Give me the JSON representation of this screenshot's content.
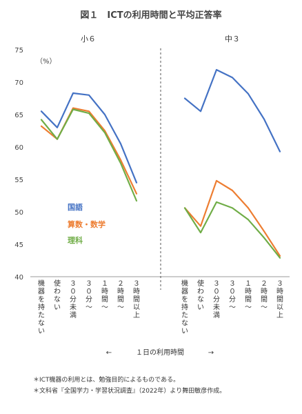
{
  "chart_data": {
    "type": "line",
    "title": "図１　ICTの利用時間と平均正答率",
    "unit_label": "（%）",
    "ylim": [
      40,
      75
    ],
    "yticks": [
      40,
      45,
      50,
      55,
      60,
      65,
      70,
      75
    ],
    "categories": [
      "機器を持たない",
      "使わない",
      "３０分未満",
      "３０分～",
      "１時間～",
      "２時間～",
      "３時間以上"
    ],
    "xlabel": "１日の利用時間",
    "xlabel_left_arrow": "←",
    "xlabel_right_arrow": "→",
    "legend_placement": "left-center",
    "grid": false,
    "panels": [
      {
        "name": "小６",
        "series": [
          {
            "name": "国語",
            "color": "#4472C4",
            "values": [
              65.5,
              63.0,
              68.3,
              68.0,
              65.0,
              60.5,
              54.5
            ]
          },
          {
            "name": "算数・数学",
            "color": "#ED7D31",
            "values": [
              63.2,
              61.2,
              66.0,
              65.5,
              62.5,
              58.0,
              52.8
            ]
          },
          {
            "name": "理科",
            "color": "#70AD47",
            "values": [
              64.2,
              61.2,
              65.8,
              65.2,
              62.2,
              57.5,
              51.7
            ]
          }
        ]
      },
      {
        "name": "中３",
        "series": [
          {
            "name": "国語",
            "color": "#4472C4",
            "values": [
              67.5,
              65.5,
              71.9,
              70.7,
              68.2,
              64.3,
              59.3
            ]
          },
          {
            "name": "算数・数学",
            "color": "#ED7D31",
            "values": [
              50.6,
              47.8,
              54.8,
              53.3,
              50.6,
              47.0,
              43.2
            ]
          },
          {
            "name": "理科",
            "color": "#70AD47",
            "values": [
              50.6,
              46.8,
              51.5,
              50.6,
              48.8,
              46.0,
              42.9
            ]
          }
        ]
      }
    ]
  },
  "notes": [
    "＊ICT機器の利用とは、勉強目的によるものである。",
    "＊文科省『全国学力・学習状況調査』（2022年）より舞田敏彦作成。"
  ]
}
